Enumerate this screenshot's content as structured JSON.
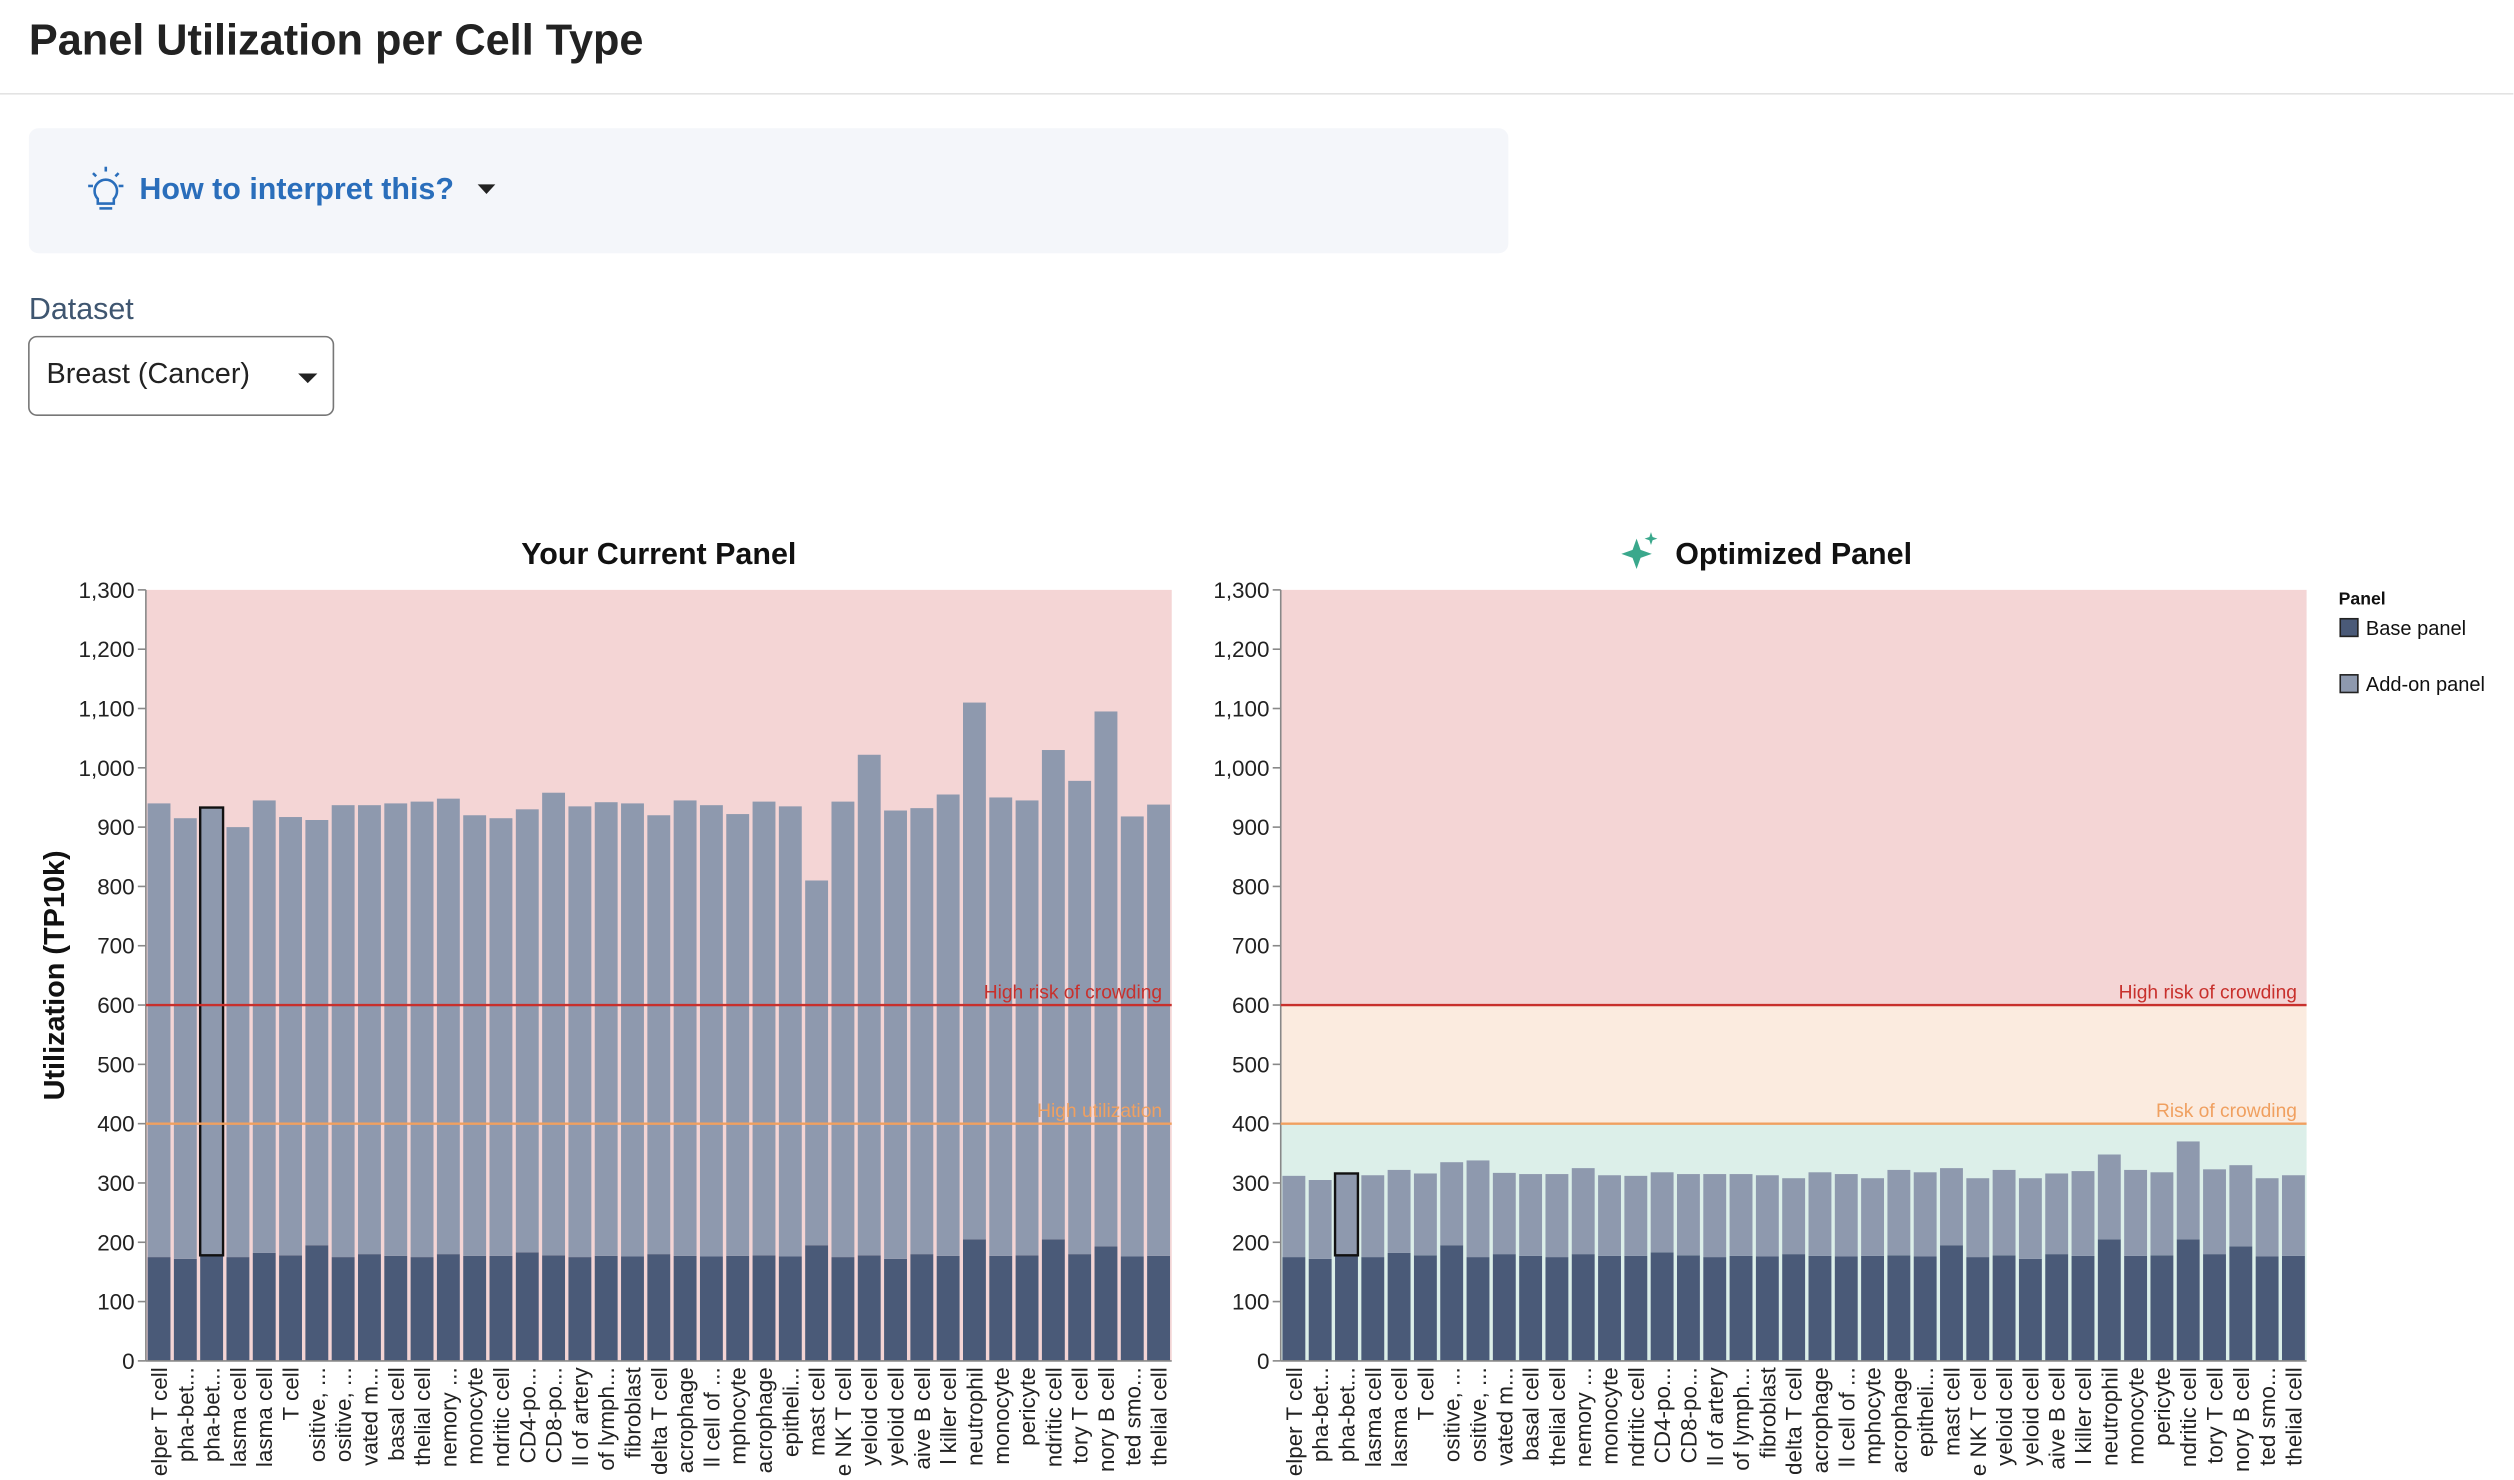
{
  "header": {
    "title": "Panel Utilization per Cell Type"
  },
  "help": {
    "label": "How to interpret this?"
  },
  "dataset": {
    "label": "Dataset",
    "value": "Breast (Cancer)"
  },
  "chart_data": [
    {
      "type": "stacked_bar",
      "title": "Your Current Panel",
      "y_label": "Utilization (TP10k)",
      "categories": [
        "elper T cell",
        "pha-bet...",
        "pha-bet...",
        "lasma cell",
        "lasma cell",
        "T cell",
        "ositive, ...",
        "ositive, ...",
        "vated m...",
        "basal cell",
        "thelial cell",
        "nemory ...",
        "monocyte",
        "ndritic cell",
        "CD4-po...",
        "CD8-po...",
        "ll of artery",
        "of lymph...",
        "fibroblast",
        "delta T cell",
        "acrophage",
        "ll cell of ...",
        "mphocyte",
        "acrophage",
        "epitheli...",
        "mast cell",
        "e NK T cell",
        "yeloid cell",
        "yeloid cell",
        "aive B cell",
        "l killer cell",
        "neutrophil",
        "monocyte",
        "pericyte",
        "ndritic cell",
        "tory T cell",
        "nory B cell",
        "ted smo...",
        "thelial cell"
      ],
      "series": [
        {
          "name": "Base panel",
          "color": "#4a5a78",
          "values": [
            175,
            172,
            178,
            175,
            182,
            178,
            195,
            175,
            180,
            177,
            175,
            180,
            177,
            177,
            183,
            178,
            175,
            177,
            176,
            180,
            177,
            176,
            177,
            178,
            176,
            195,
            175,
            178,
            172,
            180,
            177,
            205,
            177,
            178,
            205,
            180,
            193,
            176,
            177
          ]
        },
        {
          "name": "Add-on panel",
          "color": "#8e99ae",
          "values": [
            765,
            743,
            755,
            725,
            763,
            739,
            717,
            762,
            757,
            763,
            768,
            768,
            743,
            738,
            747,
            780,
            760,
            765,
            764,
            740,
            768,
            761,
            745,
            765,
            759,
            615,
            768,
            844,
            756,
            752,
            778,
            905,
            773,
            767,
            825,
            798,
            902,
            742,
            761
          ]
        }
      ],
      "highlight": 2,
      "ylim": [
        0,
        1300
      ],
      "yticks": [
        0,
        100,
        200,
        300,
        400,
        500,
        600,
        700,
        800,
        900,
        {
          "value": 1000,
          "label": "1,000"
        },
        {
          "value": 1100,
          "label": "1,100"
        },
        {
          "value": 1200,
          "label": "1,200"
        },
        {
          "value": 1300,
          "label": "1,300"
        }
      ],
      "bands": [
        {
          "from": 0,
          "to": 1300,
          "color": "#f4d5d5"
        }
      ],
      "thresholds": [
        {
          "value": 600,
          "label": "High risk of crowding",
          "color": "#c8302c"
        },
        {
          "value": 400,
          "label": "High utilization",
          "color": "#f0a060"
        }
      ]
    },
    {
      "type": "stacked_bar",
      "title": "Optimized Panel",
      "legend": {
        "title": "Panel"
      },
      "categories": [
        "elper T cell",
        "pha-bet...",
        "pha-bet...",
        "lasma cell",
        "lasma cell",
        "T cell",
        "ositive, ...",
        "ositive, ...",
        "vated m...",
        "basal cell",
        "thelial cell",
        "nemory ...",
        "monocyte",
        "ndritic cell",
        "CD4-po...",
        "CD8-po...",
        "ll of artery",
        "of lymph...",
        "fibroblast",
        "delta T cell",
        "acrophage",
        "ll cell of ...",
        "mphocyte",
        "acrophage",
        "epitheli...",
        "mast cell",
        "e NK T cell",
        "yeloid cell",
        "yeloid cell",
        "aive B cell",
        "l killer cell",
        "neutrophil",
        "monocyte",
        "pericyte",
        "ndritic cell",
        "tory T cell",
        "nory B cell",
        "ted smo...",
        "thelial cell"
      ],
      "series": [
        {
          "name": "Base panel",
          "color": "#4a5a78",
          "values": [
            175,
            172,
            178,
            175,
            182,
            178,
            195,
            175,
            180,
            177,
            175,
            180,
            177,
            177,
            183,
            178,
            175,
            177,
            176,
            180,
            177,
            176,
            177,
            178,
            176,
            195,
            175,
            178,
            172,
            180,
            177,
            205,
            177,
            178,
            205,
            180,
            193,
            176,
            177
          ]
        },
        {
          "name": "Add-on panel",
          "color": "#8e99ae",
          "values": [
            137,
            133,
            138,
            138,
            140,
            138,
            140,
            163,
            137,
            138,
            140,
            145,
            136,
            135,
            135,
            137,
            140,
            138,
            137,
            128,
            141,
            139,
            131,
            144,
            142,
            130,
            133,
            144,
            136,
            136,
            143,
            143,
            145,
            140,
            165,
            143,
            137,
            132,
            136
          ]
        }
      ],
      "highlight": 2,
      "ylim": [
        0,
        1300
      ],
      "yticks": [
        0,
        100,
        200,
        300,
        400,
        500,
        600,
        700,
        800,
        900,
        {
          "value": 1000,
          "label": "1,000"
        },
        {
          "value": 1100,
          "label": "1,100"
        },
        {
          "value": 1200,
          "label": "1,200"
        },
        {
          "value": 1300,
          "label": "1,300"
        }
      ],
      "bands": [
        {
          "from": 600,
          "to": 1300,
          "color": "#f4d5d5"
        },
        {
          "from": 400,
          "to": 600,
          "color": "#fbebdf"
        },
        {
          "from": 0,
          "to": 400,
          "color": "#dcefe9"
        }
      ],
      "thresholds": [
        {
          "value": 600,
          "label": "High risk of crowding",
          "color": "#c8302c"
        },
        {
          "value": 400,
          "label": "Risk of crowding",
          "color": "#f0a060"
        }
      ]
    }
  ]
}
